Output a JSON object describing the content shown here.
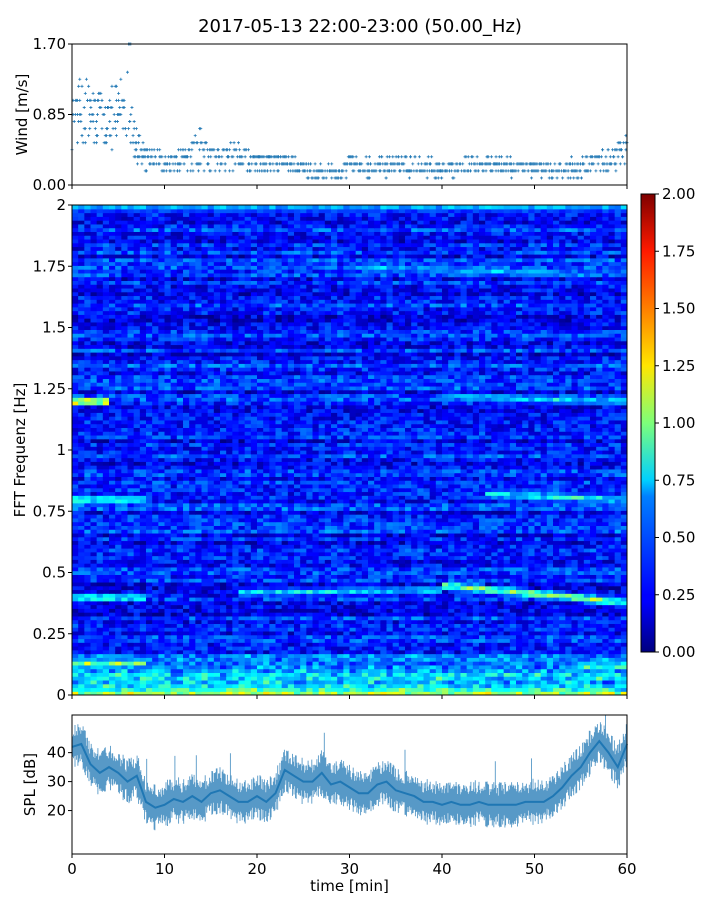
{
  "figure": {
    "title": "2017-05-13 22:00-23:00 (50.00_Hz)"
  },
  "chart_data": [
    {
      "type": "scatter",
      "name": "wind",
      "ylabel": "Wind [m/s]",
      "xlabel": "",
      "xlim": [
        0,
        60
      ],
      "ylim": [
        0,
        1.7
      ],
      "yticks": [
        "0.00",
        "0.85",
        "1.70"
      ],
      "yticks_values": [
        0,
        0.85,
        1.7
      ],
      "color": "#1f77b4",
      "marker": "+",
      "level_step": 0.085,
      "profile": [
        {
          "x": 0,
          "y": 0.75,
          "spread": 0.35
        },
        {
          "x": 1,
          "y": 0.9,
          "spread": 0.4
        },
        {
          "x": 2,
          "y": 0.85,
          "spread": 0.4
        },
        {
          "x": 3,
          "y": 0.8,
          "spread": 0.4
        },
        {
          "x": 4,
          "y": 0.75,
          "spread": 0.35
        },
        {
          "x": 5,
          "y": 0.9,
          "spread": 0.4
        },
        {
          "x": 6,
          "y": 1.0,
          "spread": 0.45
        },
        {
          "x": 7,
          "y": 0.45,
          "spread": 0.25
        },
        {
          "x": 8,
          "y": 0.3,
          "spread": 0.15
        },
        {
          "x": 9,
          "y": 0.35,
          "spread": 0.15
        },
        {
          "x": 10,
          "y": 0.25,
          "spread": 0.1
        },
        {
          "x": 12,
          "y": 0.3,
          "spread": 0.15
        },
        {
          "x": 14,
          "y": 0.45,
          "spread": 0.25
        },
        {
          "x": 15,
          "y": 0.3,
          "spread": 0.15
        },
        {
          "x": 18,
          "y": 0.35,
          "spread": 0.15
        },
        {
          "x": 20,
          "y": 0.25,
          "spread": 0.1
        },
        {
          "x": 23,
          "y": 0.3,
          "spread": 0.1
        },
        {
          "x": 26,
          "y": 0.15,
          "spread": 0.08
        },
        {
          "x": 29,
          "y": 0.15,
          "spread": 0.08
        },
        {
          "x": 30,
          "y": 0.25,
          "spread": 0.12
        },
        {
          "x": 33,
          "y": 0.2,
          "spread": 0.1
        },
        {
          "x": 36,
          "y": 0.25,
          "spread": 0.12
        },
        {
          "x": 40,
          "y": 0.2,
          "spread": 0.1
        },
        {
          "x": 45,
          "y": 0.25,
          "spread": 0.1
        },
        {
          "x": 50,
          "y": 0.2,
          "spread": 0.1
        },
        {
          "x": 55,
          "y": 0.2,
          "spread": 0.1
        },
        {
          "x": 58,
          "y": 0.3,
          "spread": 0.15
        },
        {
          "x": 60,
          "y": 0.4,
          "spread": 0.2
        }
      ]
    },
    {
      "type": "heatmap",
      "name": "spectrogram",
      "ylabel": "FFT Frequenz [Hz]",
      "xlabel": "",
      "xlim": [
        0,
        60
      ],
      "ylim": [
        0,
        2
      ],
      "yticks": [
        "0",
        "0.25",
        "0.5",
        "0.75",
        "1",
        "1.25",
        "1.5",
        "1.75",
        "2"
      ],
      "yticks_values": [
        0,
        0.25,
        0.5,
        0.75,
        1,
        1.25,
        1.5,
        1.75,
        2
      ],
      "colormap": "jet",
      "clim": [
        0,
        2
      ],
      "colorbar_ticks": [
        "0.00",
        "0.25",
        "0.50",
        "0.75",
        "1.00",
        "1.25",
        "1.50",
        "1.75",
        "2.00"
      ],
      "colorbar_tick_values": [
        0,
        0.25,
        0.5,
        0.75,
        1,
        1.25,
        1.5,
        1.75,
        2
      ],
      "background_level": 0.3,
      "features": [
        {
          "f_start": 0.01,
          "f_end": 0.01,
          "t_start": 0,
          "t_end": 60,
          "level": 1.3
        },
        {
          "f_start": 0.03,
          "f_end": 0.03,
          "t_start": 0,
          "t_end": 40,
          "level": 0.9
        },
        {
          "f_start": 0.13,
          "f_end": 0.13,
          "t_start": 0,
          "t_end": 8,
          "level": 1.2
        },
        {
          "f_start": 0.12,
          "f_end": 0.12,
          "t_start": 55,
          "t_end": 60,
          "level": 1.1
        },
        {
          "f_start": 0.4,
          "f_end": 0.4,
          "t_start": 0,
          "t_end": 8,
          "level": 1.0
        },
        {
          "f_start": 0.42,
          "f_end": 0.43,
          "t_start": 18,
          "t_end": 40,
          "level": 0.8
        },
        {
          "f_start": 0.45,
          "f_end": 0.38,
          "t_start": 40,
          "t_end": 60,
          "level": 1.2
        },
        {
          "f_start": 0.8,
          "f_end": 0.8,
          "t_start": 0,
          "t_end": 8,
          "level": 1.0
        },
        {
          "f_start": 0.82,
          "f_end": 0.8,
          "t_start": 45,
          "t_end": 60,
          "level": 0.9
        },
        {
          "f_start": 1.2,
          "f_end": 1.2,
          "t_start": 0,
          "t_end": 4,
          "level": 1.6
        },
        {
          "f_start": 1.22,
          "f_end": 1.2,
          "t_start": 40,
          "t_end": 60,
          "level": 0.8
        },
        {
          "f_start": 1.75,
          "f_end": 1.72,
          "t_start": 30,
          "t_end": 55,
          "level": 0.7
        },
        {
          "f_start": 1.99,
          "f_end": 1.99,
          "t_start": 0,
          "t_end": 60,
          "level": 0.7
        }
      ]
    },
    {
      "type": "line",
      "name": "spl",
      "ylabel": "SPL [dB]",
      "xlabel": "time [min]",
      "xlim": [
        0,
        60
      ],
      "ylim": [
        5,
        53
      ],
      "xticks": [
        "0",
        "10",
        "20",
        "30",
        "40",
        "50",
        "60"
      ],
      "xticks_values": [
        0,
        10,
        20,
        30,
        40,
        50,
        60
      ],
      "yticks": [
        "20",
        "30",
        "40"
      ],
      "yticks_values": [
        20,
        30,
        40
      ],
      "color": "#1f77b4",
      "x": [
        0,
        1,
        2,
        3,
        4,
        5,
        6,
        7,
        8,
        9,
        10,
        11,
        12,
        13,
        14,
        15,
        16,
        17,
        18,
        19,
        20,
        21,
        22,
        23,
        24,
        25,
        26,
        27,
        28,
        29,
        30,
        31,
        32,
        33,
        34,
        35,
        36,
        37,
        38,
        39,
        40,
        41,
        42,
        43,
        44,
        45,
        46,
        47,
        48,
        49,
        50,
        51,
        52,
        53,
        54,
        55,
        56,
        57,
        58,
        59,
        60
      ],
      "y": [
        42,
        43,
        36,
        33,
        35,
        33,
        30,
        32,
        23,
        21,
        22,
        24,
        23,
        25,
        23,
        26,
        27,
        25,
        23,
        23,
        25,
        23,
        26,
        34,
        32,
        30,
        30,
        33,
        29,
        30,
        28,
        26,
        26,
        29,
        30,
        27,
        26,
        25,
        23,
        23,
        22,
        23,
        22,
        22,
        23,
        22,
        22,
        22,
        22,
        23,
        23,
        23,
        25,
        28,
        32,
        35,
        40,
        44,
        40,
        35,
        43
      ]
    }
  ]
}
